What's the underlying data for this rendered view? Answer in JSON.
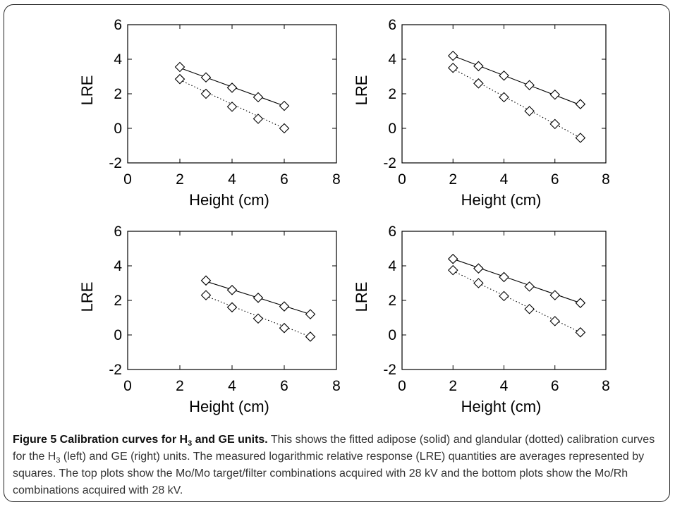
{
  "chart_data": [
    {
      "type": "line",
      "xlabel": "Height (cm)",
      "ylabel": "LRE",
      "xlim": [
        0,
        8
      ],
      "ylim": [
        -2,
        6
      ],
      "xticks": [
        "0",
        "2",
        "4",
        "6",
        "8"
      ],
      "yticks": [
        "6",
        "4",
        "2",
        "0",
        "-2"
      ],
      "series": [
        {
          "style": "solid",
          "x": [
            2,
            3,
            4,
            5,
            6
          ],
          "y": [
            3.55,
            2.95,
            2.35,
            1.8,
            1.3
          ],
          "fit": [
            [
              2,
              3.5
            ],
            [
              6,
              1.3
            ]
          ]
        },
        {
          "style": "dotted",
          "x": [
            2,
            3,
            4,
            5,
            6
          ],
          "y": [
            2.85,
            2.0,
            1.25,
            0.55,
            0.0
          ],
          "fit": [
            [
              2,
              2.8
            ],
            [
              6,
              0.0
            ]
          ]
        }
      ]
    },
    {
      "type": "line",
      "xlabel": "Height (cm)",
      "ylabel": "LRE",
      "xlim": [
        0,
        8
      ],
      "ylim": [
        -2,
        6
      ],
      "xticks": [
        "0",
        "2",
        "4",
        "6",
        "8"
      ],
      "yticks": [
        "6",
        "4",
        "2",
        "0",
        "-2"
      ],
      "series": [
        {
          "style": "solid",
          "x": [
            2,
            3,
            4,
            5,
            6,
            7
          ],
          "y": [
            4.2,
            3.6,
            3.05,
            2.5,
            1.95,
            1.4
          ],
          "fit": [
            [
              2,
              4.2
            ],
            [
              7,
              1.35
            ]
          ]
        },
        {
          "style": "dotted",
          "x": [
            2,
            3,
            4,
            5,
            6,
            7
          ],
          "y": [
            3.5,
            2.6,
            1.8,
            1.0,
            0.25,
            -0.55
          ],
          "fit": [
            [
              2,
              3.45
            ],
            [
              7,
              -0.55
            ]
          ]
        }
      ]
    },
    {
      "type": "line",
      "xlabel": "Height (cm)",
      "ylabel": "LRE",
      "xlim": [
        0,
        8
      ],
      "ylim": [
        -2,
        6
      ],
      "xticks": [
        "0",
        "2",
        "4",
        "6",
        "8"
      ],
      "yticks": [
        "6",
        "4",
        "2",
        "0",
        "-2"
      ],
      "series": [
        {
          "style": "solid",
          "x": [
            3,
            4,
            5,
            6,
            7
          ],
          "y": [
            3.15,
            2.6,
            2.15,
            1.65,
            1.2
          ],
          "fit": [
            [
              3,
              3.1
            ],
            [
              7,
              1.2
            ]
          ]
        },
        {
          "style": "dotted",
          "x": [
            3,
            4,
            5,
            6,
            7
          ],
          "y": [
            2.3,
            1.6,
            0.95,
            0.4,
            -0.1
          ],
          "fit": [
            [
              3,
              2.25
            ],
            [
              7,
              -0.1
            ]
          ]
        }
      ]
    },
    {
      "type": "line",
      "xlabel": "Height (cm)",
      "ylabel": "LRE",
      "xlim": [
        0,
        8
      ],
      "ylim": [
        -2,
        6
      ],
      "xticks": [
        "0",
        "2",
        "4",
        "6",
        "8"
      ],
      "yticks": [
        "6",
        "4",
        "2",
        "0",
        "-2"
      ],
      "series": [
        {
          "style": "solid",
          "x": [
            2,
            3,
            4,
            5,
            6,
            7
          ],
          "y": [
            4.4,
            3.85,
            3.35,
            2.8,
            2.3,
            1.85
          ],
          "fit": [
            [
              2,
              4.4
            ],
            [
              7,
              1.85
            ]
          ]
        },
        {
          "style": "dotted",
          "x": [
            2,
            3,
            4,
            5,
            6,
            7
          ],
          "y": [
            3.75,
            3.0,
            2.25,
            1.5,
            0.8,
            0.15
          ],
          "fit": [
            [
              2,
              3.7
            ],
            [
              7,
              0.15
            ]
          ]
        }
      ]
    }
  ],
  "caption": {
    "title_pre": "Figure 5 Calibration curves for H",
    "title_sub": "3",
    "title_post": " and GE units.",
    "body_1": " This shows the fitted adipose (solid) and glandular (dotted) calibration curves for the H",
    "body_sub": "3",
    "body_2": " (left) and GE (right) units. The measured logarithmic relative response (LRE) quantities are averages represented by squares. The top plots show the Mo/Mo target/filter combinations acquired with 28 kV and the bottom plots show the Mo/Rh combinations acquired with 28 kV."
  }
}
